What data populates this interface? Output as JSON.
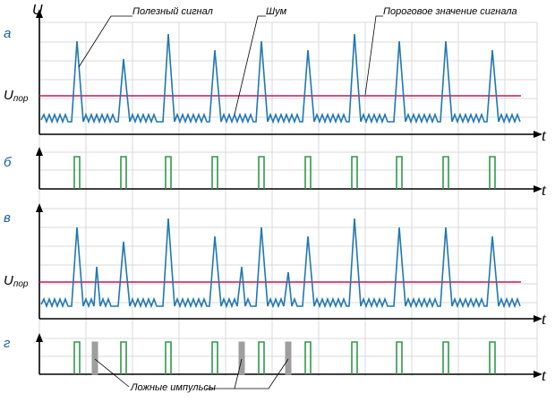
{
  "panels": {
    "a": "а",
    "b": "б",
    "v": "в",
    "g": "г"
  },
  "axes": {
    "y_label": "U",
    "x_label": "t",
    "threshold_main": "U",
    "threshold_sub": "пор"
  },
  "annotations": {
    "useful_signal": "Полезный сигнал",
    "noise": "Шум",
    "threshold": "Пороговое значение сигнала",
    "false_pulses": "Ложные импульсы"
  },
  "colors": {
    "signal": "#1f77b4",
    "threshold": "#c2185b",
    "pulse": "#2e9a4a",
    "false_pulse": "#9e9e9e",
    "panel_letter": "#1a5fa8"
  },
  "signal": {
    "peak_count": 10,
    "noise_spikes_in_v": 4
  }
}
